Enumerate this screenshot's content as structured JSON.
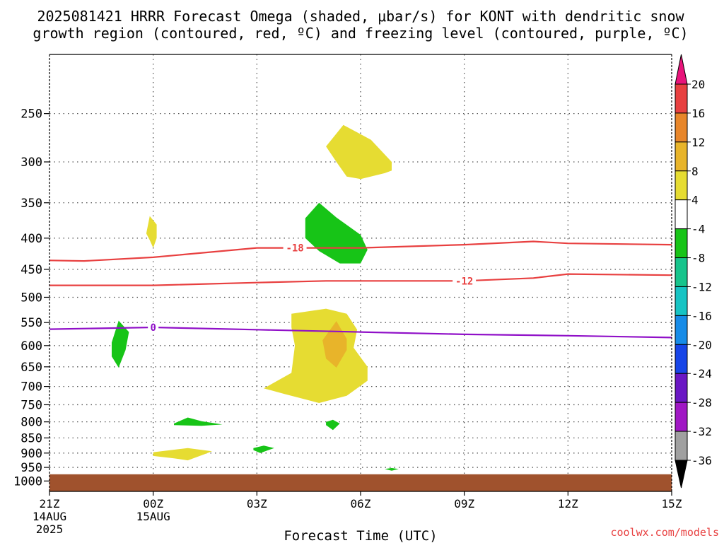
{
  "chart_data": {
    "type": "heatmap",
    "title_line1": "2025081421 HRRR Forecast Omega (shaded, μbar/s) for KONT with dendritic snow",
    "title_line2": "growth region (contoured, red, ºC) and freezing level (contoured, purple, ºC)",
    "xlabel": "Forecast Time (UTC)",
    "ylabel": "",
    "credit": "coolwx.com/models",
    "x_range_hours": [
      0,
      18
    ],
    "x_ticks": [
      {
        "h": 0,
        "label": "21Z",
        "sub1": "14AUG",
        "sub2": "2025"
      },
      {
        "h": 3,
        "label": "00Z",
        "sub1": "15AUG",
        "sub2": ""
      },
      {
        "h": 6,
        "label": "03Z",
        "sub1": "",
        "sub2": ""
      },
      {
        "h": 9,
        "label": "06Z",
        "sub1": "",
        "sub2": ""
      },
      {
        "h": 12,
        "label": "09Z",
        "sub1": "",
        "sub2": ""
      },
      {
        "h": 15,
        "label": "12Z",
        "sub1": "",
        "sub2": ""
      },
      {
        "h": 18,
        "label": "15Z",
        "sub1": "",
        "sub2": ""
      }
    ],
    "y_axis": "pressure (mb), log scale, inverted",
    "y_range_mb": [
      200,
      1040
    ],
    "y_ticks": [
      250,
      300,
      350,
      400,
      450,
      500,
      550,
      600,
      650,
      700,
      750,
      800,
      850,
      900,
      950,
      1000
    ],
    "grid": true,
    "colorbar": {
      "levels": [
        20,
        16,
        12,
        8,
        4,
        -4,
        -8,
        -12,
        -16,
        -20,
        -24,
        -28,
        -32,
        -36
      ],
      "colors": [
        "#e8147a",
        "#e84040",
        "#e8862a",
        "#e8b42a",
        "#e6dc32",
        "#ffffff",
        "#17c417",
        "#17c48c",
        "#17c4c4",
        "#178ce8",
        "#1745e8",
        "#6a17c4",
        "#a017c4",
        "#a0a0a0",
        "#000000"
      ]
    },
    "surface_color": "#a0522d",
    "omega_regions": [
      {
        "color": "#e6dc32",
        "label": "+4 to +8",
        "points": [
          [
            8.0,
            283
          ],
          [
            8.5,
            261
          ],
          [
            9.3,
            276
          ],
          [
            9.9,
            300
          ],
          [
            9.9,
            310
          ],
          [
            9.7,
            313
          ],
          [
            9.0,
            320
          ],
          [
            8.6,
            317
          ],
          [
            8.3,
            300
          ],
          [
            8.0,
            283
          ]
        ]
      },
      {
        "color": "#e6dc32",
        "label": "+4 to +8",
        "points": [
          [
            2.8,
            393
          ],
          [
            2.9,
            368
          ],
          [
            3.1,
            380
          ],
          [
            3.1,
            400
          ],
          [
            3.0,
            415
          ],
          [
            2.9,
            403
          ],
          [
            2.8,
            393
          ]
        ]
      },
      {
        "color": "#e6dc32",
        "label": "+4 to +8",
        "points": [
          [
            7.0,
            532
          ],
          [
            8.0,
            522
          ],
          [
            8.6,
            532
          ],
          [
            8.9,
            565
          ],
          [
            8.8,
            605
          ],
          [
            9.2,
            650
          ],
          [
            9.2,
            685
          ],
          [
            8.6,
            725
          ],
          [
            7.8,
            745
          ],
          [
            7.4,
            735
          ],
          [
            6.8,
            720
          ],
          [
            6.2,
            705
          ],
          [
            7.0,
            665
          ],
          [
            7.1,
            600
          ],
          [
            7.0,
            560
          ],
          [
            7.0,
            532
          ]
        ]
      },
      {
        "color": "#e6dc32",
        "label": "+4 to +8",
        "points": [
          [
            3.0,
            897
          ],
          [
            4.0,
            883
          ],
          [
            4.7,
            894
          ],
          [
            4.5,
            903
          ],
          [
            4.0,
            925
          ],
          [
            3.6,
            918
          ],
          [
            3.0,
            910
          ],
          [
            3.0,
            897
          ]
        ]
      },
      {
        "color": "#e8b42a",
        "label": "+8 to +12",
        "points": [
          [
            7.9,
            588
          ],
          [
            8.3,
            547
          ],
          [
            8.6,
            585
          ],
          [
            8.6,
            610
          ],
          [
            8.3,
            652
          ],
          [
            8.0,
            630
          ],
          [
            7.9,
            588
          ]
        ]
      },
      {
        "color": "#17c417",
        "label": "-4 to -8",
        "points": [
          [
            7.4,
            371
          ],
          [
            7.8,
            350
          ],
          [
            8.3,
            370
          ],
          [
            9.0,
            395
          ],
          [
            9.2,
            418
          ],
          [
            9.0,
            440
          ],
          [
            8.4,
            440
          ],
          [
            7.8,
            420
          ],
          [
            7.4,
            400
          ],
          [
            7.4,
            371
          ]
        ]
      },
      {
        "color": "#17c417",
        "label": "-4 to -8",
        "points": [
          [
            1.8,
            593
          ],
          [
            2.0,
            546
          ],
          [
            2.3,
            570
          ],
          [
            2.2,
            610
          ],
          [
            2.0,
            652
          ],
          [
            1.8,
            625
          ],
          [
            1.8,
            593
          ]
        ]
      },
      {
        "color": "#17c417",
        "label": "-4 to -8",
        "points": [
          [
            3.6,
            805
          ],
          [
            4.0,
            787
          ],
          [
            4.4,
            798
          ],
          [
            5.0,
            808
          ],
          [
            4.4,
            812
          ],
          [
            3.6,
            810
          ],
          [
            3.6,
            805
          ]
        ]
      },
      {
        "color": "#17c417",
        "label": "-4 to -8",
        "points": [
          [
            8.0,
            800
          ],
          [
            8.2,
            794
          ],
          [
            8.4,
            805
          ],
          [
            8.2,
            825
          ],
          [
            8.0,
            810
          ],
          [
            8.0,
            800
          ]
        ]
      },
      {
        "color": "#17c417",
        "label": "-4 to -8",
        "points": [
          [
            5.9,
            883
          ],
          [
            6.2,
            875
          ],
          [
            6.5,
            883
          ],
          [
            6.1,
            900
          ],
          [
            5.9,
            890
          ],
          [
            5.9,
            883
          ]
        ]
      },
      {
        "color": "#17c417",
        "label": "-4 to -8",
        "points": [
          [
            9.7,
            956
          ],
          [
            9.9,
            952
          ],
          [
            10.1,
            956
          ],
          [
            9.9,
            962
          ],
          [
            9.7,
            956
          ]
        ]
      }
    ],
    "series": [
      {
        "name": "",
        "color": "#e84040",
        "label": "-18",
        "label_at_h": 7.1,
        "points": [
          [
            0,
            435
          ],
          [
            1,
            436
          ],
          [
            3,
            430
          ],
          [
            6,
            415
          ],
          [
            9,
            415
          ],
          [
            12,
            410
          ],
          [
            14,
            405
          ],
          [
            15,
            408
          ],
          [
            18,
            410
          ]
        ]
      },
      {
        "name": "",
        "color": "#e84040",
        "label": "-12",
        "label_at_h": 12.0,
        "points": [
          [
            0,
            478
          ],
          [
            3,
            478
          ],
          [
            6,
            473
          ],
          [
            8,
            470
          ],
          [
            12,
            470
          ],
          [
            14,
            465
          ],
          [
            15,
            458
          ],
          [
            18,
            460
          ]
        ]
      },
      {
        "name": "",
        "color": "#9010c8",
        "label": "0",
        "label_at_h": 3.0,
        "points": [
          [
            0,
            564
          ],
          [
            3,
            560
          ],
          [
            6,
            565
          ],
          [
            9,
            570
          ],
          [
            12,
            575
          ],
          [
            15,
            578
          ],
          [
            18,
            582
          ]
        ]
      }
    ]
  }
}
